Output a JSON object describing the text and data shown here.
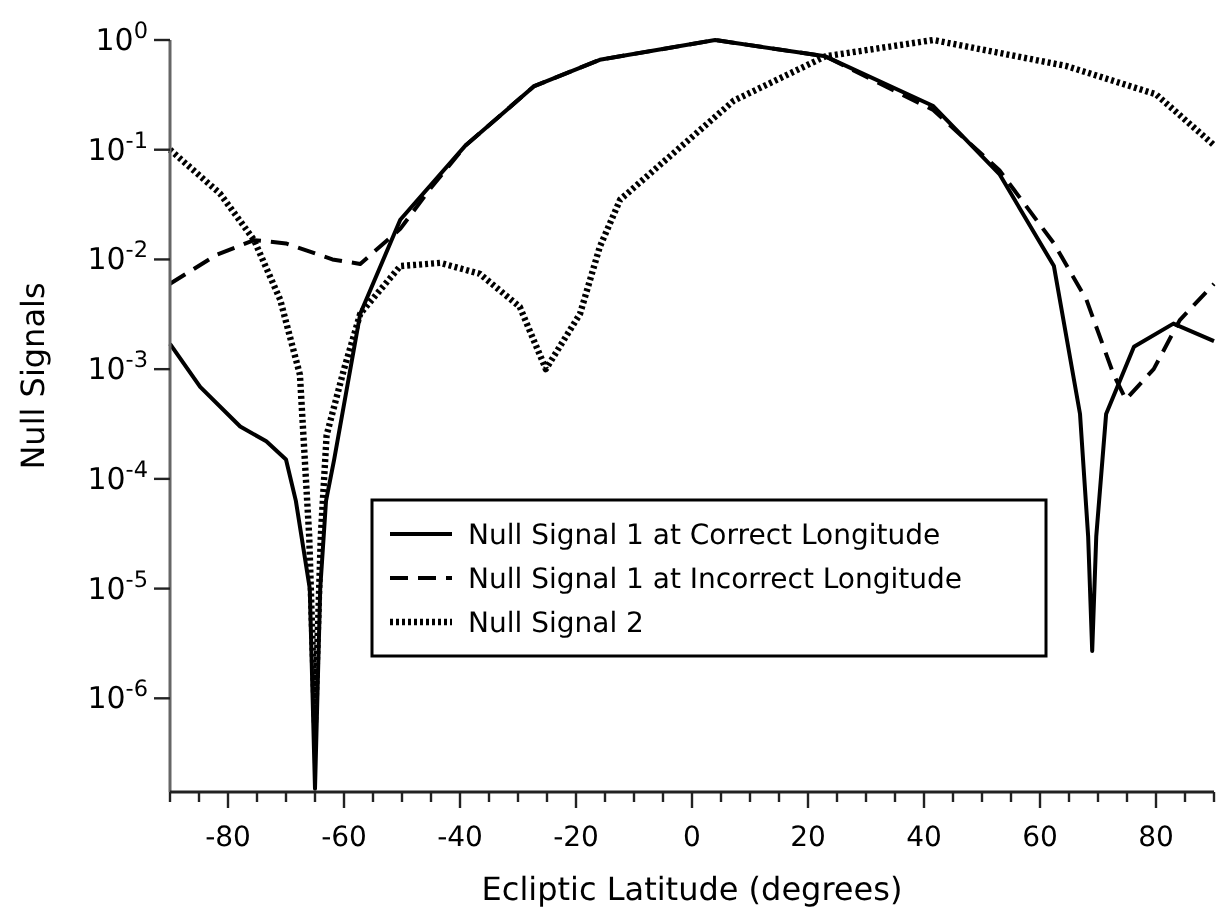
{
  "chart_data": {
    "type": "line",
    "xlabel": "Ecliptic Latitude (degrees)",
    "ylabel": "Null Signals",
    "log": "y",
    "grid": false,
    "legend": "right",
    "marker": "none",
    "xlim": [
      -90,
      90
    ],
    "xticks": [
      {
        "value": -90,
        "label": null
      },
      {
        "value": -85,
        "label": null
      },
      -80,
      {
        "value": -75,
        "label": null
      },
      {
        "value": -70,
        "label": null
      },
      {
        "value": -65,
        "label": null
      },
      -60,
      {
        "value": -55,
        "label": null
      },
      {
        "value": -50,
        "label": null
      },
      {
        "value": -45,
        "label": null
      },
      -40,
      {
        "value": -35,
        "label": null
      },
      {
        "value": -30,
        "label": null
      },
      {
        "value": -25,
        "label": null
      },
      -20,
      {
        "value": -15,
        "label": null
      },
      {
        "value": -10,
        "label": null
      },
      {
        "value": -5,
        "label": null
      },
      0,
      {
        "value": 5,
        "label": null
      },
      {
        "value": 10,
        "label": null
      },
      {
        "value": 15,
        "label": null
      },
      20,
      {
        "value": 25,
        "label": null
      },
      {
        "value": 30,
        "label": null
      },
      {
        "value": 35,
        "label": null
      },
      40,
      {
        "value": 45,
        "label": null
      },
      {
        "value": 50,
        "label": null
      },
      {
        "value": 55,
        "label": null
      },
      60,
      {
        "value": 65,
        "label": null
      },
      {
        "value": 70,
        "label": null
      },
      {
        "value": 75,
        "label": null
      },
      80,
      {
        "value": 85,
        "label": null
      },
      {
        "value": 90,
        "label": null
      }
    ],
    "ylim": [
      1.4e-07,
      1
    ],
    "yticks": [
      {
        "value": 1e-06,
        "label": "10$^{-6}$"
      },
      {
        "value": 1e-05,
        "label": "10$^{-5}$"
      },
      {
        "value": 0.0001,
        "label": "10$^{-4}$"
      },
      {
        "value": 0.001,
        "label": "10$^{-3}$"
      },
      {
        "value": 0.01,
        "label": "10$^{-2}$"
      },
      {
        "value": 0.1,
        "label": "10$^{-1}$"
      },
      {
        "value": 1,
        "label": "10$^{0}$"
      }
    ],
    "series": [
      {
        "name": "Null Signal 1 at Correct Longitude",
        "color": "#000000",
        "line_style": "solid",
        "x": [
          -90,
          -84.8,
          -77.9,
          -73.4,
          -70,
          -68.3,
          -65.9,
          -65,
          -64.1,
          -63.1,
          -61.7,
          -57.2,
          -50.3,
          -39,
          -27.2,
          -15.9,
          4,
          23,
          41.6,
          53,
          62.4,
          66.9,
          68.3,
          69,
          69.7,
          71.4,
          76.2,
          83,
          90
        ],
        "values": [
          0.0017,
          0.00069,
          0.0003,
          0.00022,
          0.00015,
          6.3e-05,
          1e-05,
          1.5e-07,
          1e-05,
          6.3e-05,
          0.00015,
          0.0032,
          0.023,
          0.11,
          0.38,
          0.66,
          1,
          0.71,
          0.25,
          0.06,
          0.0087,
          0.00039,
          3e-05,
          2.7e-06,
          3e-05,
          0.00039,
          0.0016,
          0.0026,
          0.0018
        ]
      },
      {
        "name": "Null Signal 1 at Incorrect Longitude",
        "color": "#000000",
        "line_style": "dashed",
        "x": [
          -90,
          -82,
          -75.5,
          -70,
          -62,
          -57.2,
          -50.3,
          -45,
          -39,
          -27.2,
          -15.9,
          4,
          23,
          41.6,
          53,
          62.4,
          68,
          72.7,
          74.8,
          79.6,
          84.1,
          90
        ],
        "values": [
          0.006,
          0.011,
          0.015,
          0.014,
          0.01,
          0.0091,
          0.019,
          0.045,
          0.11,
          0.38,
          0.66,
          1,
          0.71,
          0.23,
          0.065,
          0.014,
          0.0043,
          0.00089,
          0.00053,
          0.001,
          0.0028,
          0.006
        ]
      },
      {
        "name": "Null Signal 2",
        "color": "#000000",
        "line_style": "dotted",
        "x": [
          -90,
          -81.4,
          -75.5,
          -71,
          -67.6,
          -66,
          -65,
          -64,
          -63,
          -60,
          -57.2,
          -50.3,
          -43.4,
          -36.6,
          -29.7,
          -25.2,
          -19.3,
          -15.9,
          -12.4,
          -4.5,
          7.2,
          23,
          41.6,
          64.5,
          80,
          90
        ],
        "values": [
          0.1,
          0.04,
          0.015,
          0.0043,
          0.00089,
          3e-05,
          6e-07,
          3e-05,
          0.00025,
          0.001,
          0.0032,
          0.0087,
          0.0093,
          0.0074,
          0.0037,
          0.001,
          0.0032,
          0.013,
          0.035,
          0.081,
          0.28,
          0.71,
          1,
          0.58,
          0.32,
          0.11
        ]
      }
    ]
  }
}
